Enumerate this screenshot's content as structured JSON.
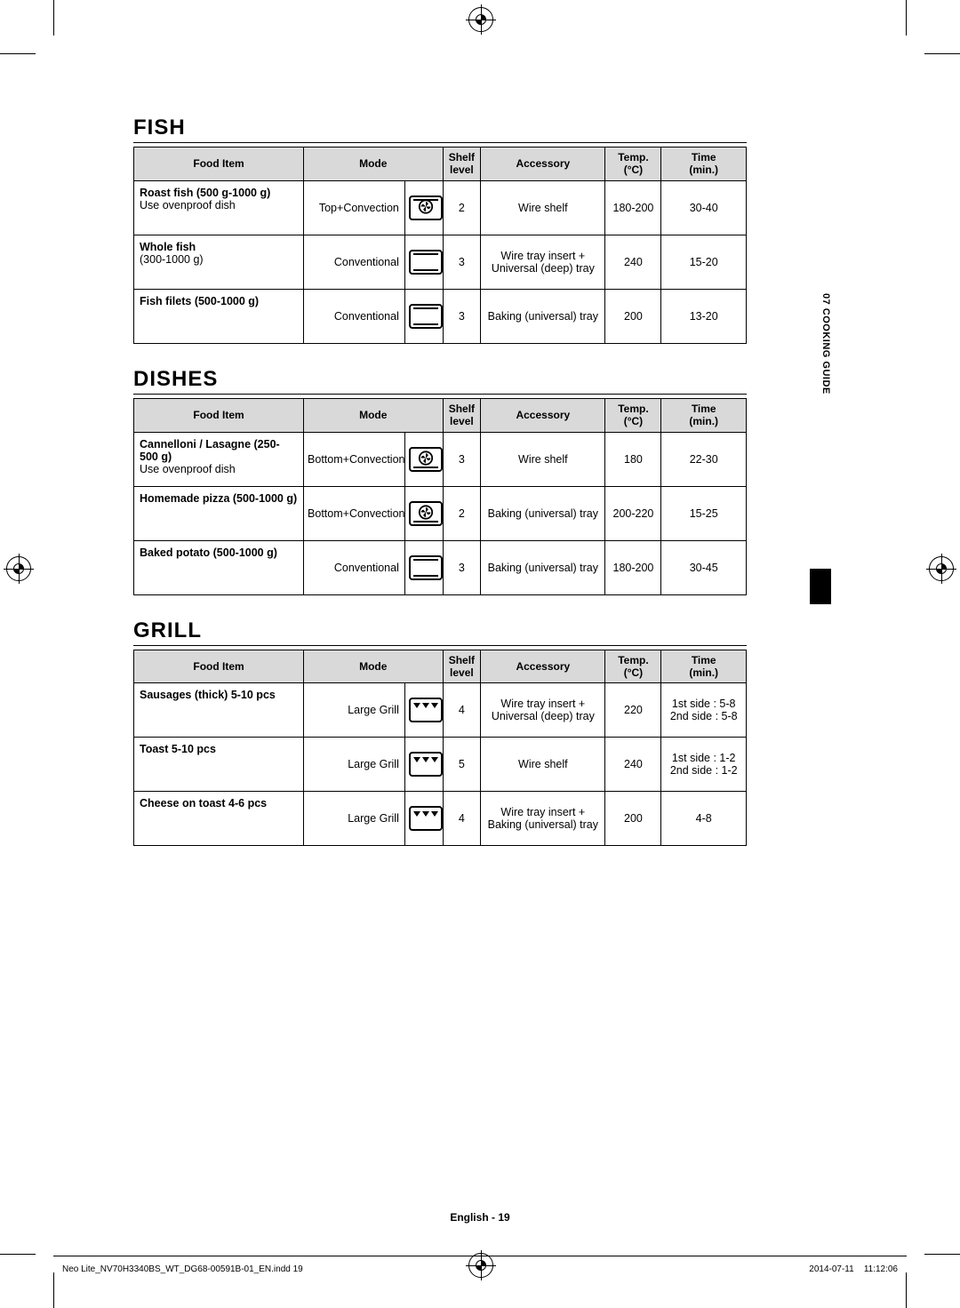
{
  "side_tab": "07  COOKING GUIDE",
  "footer": {
    "center_lang": "English - ",
    "center_page": "19",
    "left": "Neo Lite_NV70H3340BS_WT_DG68-00591B-01_EN.indd   19",
    "right_date": "2014-07-11",
    "right_time": "11:12:06"
  },
  "headers": {
    "food": "Food Item",
    "mode": "Mode",
    "shelf": "Shelf level",
    "accessory": "Accessory",
    "temp": "Temp. (°C)",
    "time": "Time (min.)"
  },
  "sections": [
    {
      "title": "FISH",
      "rows": [
        {
          "food_l1": "Roast fish (500 g-1000 g)",
          "food_l2": "Use ovenproof dish",
          "mode": "Top+Convection",
          "icon": "top-convection",
          "shelf": "2",
          "acc": "Wire shelf",
          "temp": "180-200",
          "time": "30-40"
        },
        {
          "food_l1": "Whole fish",
          "food_l2": "(300-1000 g)",
          "mode": "Conventional",
          "icon": "conventional",
          "shelf": "3",
          "acc": "Wire tray insert + Universal (deep) tray",
          "temp": "240",
          "time": "15-20"
        },
        {
          "food_l1": "Fish filets (500-1000 g)",
          "food_l2": "",
          "mode": "Conventional",
          "icon": "conventional",
          "shelf": "3",
          "acc": "Baking (universal) tray",
          "temp": "200",
          "time": "13-20"
        }
      ]
    },
    {
      "title": "DISHES",
      "rows": [
        {
          "food_l1": "Cannelloni / Lasagne (250-500 g)",
          "food_l2": "Use ovenproof dish",
          "mode": "Bottom+Convection",
          "icon": "bottom-convection",
          "shelf": "3",
          "acc": "Wire shelf",
          "temp": "180",
          "time": "22-30"
        },
        {
          "food_l1": "Homemade pizza (500-1000 g)",
          "food_l2": "",
          "mode": "Bottom+Convection",
          "icon": "bottom-convection",
          "shelf": "2",
          "acc": "Baking (universal) tray",
          "temp": "200-220",
          "time": "15-25"
        },
        {
          "food_l1": "Baked potato (500-1000 g)",
          "food_l2": "",
          "mode": "Conventional",
          "icon": "conventional",
          "shelf": "3",
          "acc": "Baking (universal) tray",
          "temp": "180-200",
          "time": "30-45"
        }
      ]
    },
    {
      "title": "GRILL",
      "rows": [
        {
          "food_l1": "Sausages (thick) 5-10 pcs",
          "food_l2": "",
          "mode": "Large Grill",
          "icon": "large-grill",
          "shelf": "4",
          "acc": "Wire tray insert + Universal (deep) tray",
          "temp": "220",
          "time": "1st side : 5-8\n2nd side : 5-8"
        },
        {
          "food_l1": "Toast 5-10 pcs",
          "food_l2": "",
          "mode": "Large Grill",
          "icon": "large-grill",
          "shelf": "5",
          "acc": "Wire shelf",
          "temp": "240",
          "time": "1st side : 1-2\n2nd side : 1-2"
        },
        {
          "food_l1": "Cheese on toast 4-6 pcs",
          "food_l2": "",
          "mode": "Large Grill",
          "icon": "large-grill",
          "shelf": "4",
          "acc": "Wire tray insert + Baking (universal) tray",
          "temp": "200",
          "time": "4-8"
        }
      ]
    }
  ]
}
